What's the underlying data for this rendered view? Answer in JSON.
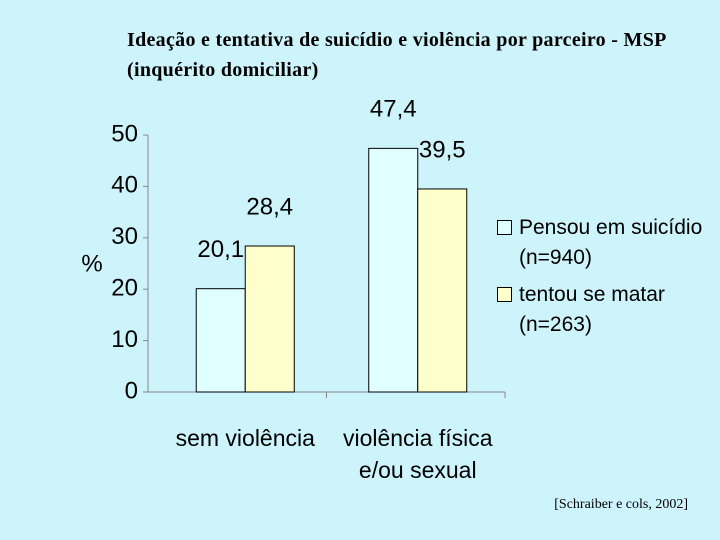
{
  "chart_data": {
    "type": "bar",
    "title": "Ideação e tentativa de suicídio e violência por parceiro - MSP (inquérito domiciliar)",
    "ylabel": "%",
    "categories": [
      "sem violência",
      "violência física e/ou sexual"
    ],
    "series": [
      {
        "name": "Pensou em suicídio (n=940)",
        "color": "#e0ffff",
        "values": [
          20.1,
          47.4
        ],
        "value_labels": [
          "20,1",
          "47,4"
        ]
      },
      {
        "name": "tentou se matar (n=263)",
        "color": "#ffffcc",
        "values": [
          28.4,
          39.5
        ],
        "value_labels": [
          "28,4",
          "39,5"
        ]
      }
    ],
    "ylim": [
      0,
      50
    ],
    "yticks": [
      0,
      10,
      20,
      30,
      40,
      50
    ],
    "legend": "right",
    "source": "[Schraiber e cols, 2002]"
  }
}
